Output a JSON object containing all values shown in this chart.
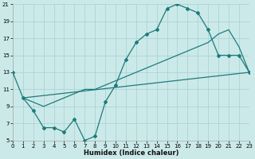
{
  "xlabel": "Humidex (Indice chaleur)",
  "bg_color": "#cce9e9",
  "grid_color": "#aad4d4",
  "line_color": "#1e7b7b",
  "xmin": 0,
  "xmax": 23,
  "ymin": 5,
  "ymax": 21,
  "yticks": [
    5,
    7,
    9,
    11,
    13,
    15,
    17,
    19,
    21
  ],
  "xticks": [
    0,
    1,
    2,
    3,
    4,
    5,
    6,
    7,
    8,
    9,
    10,
    11,
    12,
    13,
    14,
    15,
    16,
    17,
    18,
    19,
    20,
    21,
    22,
    23
  ],
  "line1_x": [
    0,
    1,
    2,
    3,
    4,
    5,
    6,
    7,
    8,
    9,
    10,
    11,
    12,
    13,
    14,
    15,
    16,
    17,
    18,
    19,
    20,
    21,
    22,
    23
  ],
  "line1_y": [
    13,
    10,
    8.5,
    6.5,
    6.5,
    6.0,
    7.5,
    5.0,
    5.5,
    9.5,
    11.5,
    14.5,
    16.5,
    17.5,
    18.0,
    20.5,
    21.0,
    20.5,
    20.0,
    18.0,
    15.0,
    15.0,
    15.0,
    13.0
  ],
  "line2_x": [
    1,
    23
  ],
  "line2_y": [
    10.0,
    13.0
  ],
  "line3_x": [
    1,
    2,
    3,
    4,
    5,
    6,
    7,
    8,
    9,
    10,
    11,
    12,
    13,
    14,
    15,
    16,
    17,
    18,
    19,
    20,
    21,
    22,
    23
  ],
  "line3_y": [
    10.0,
    9.5,
    9.0,
    9.5,
    10.0,
    10.5,
    11.0,
    11.0,
    11.5,
    12.0,
    12.5,
    13.0,
    13.5,
    14.0,
    14.5,
    15.0,
    15.5,
    16.0,
    16.5,
    17.5,
    18.0,
    16.0,
    13.0
  ]
}
